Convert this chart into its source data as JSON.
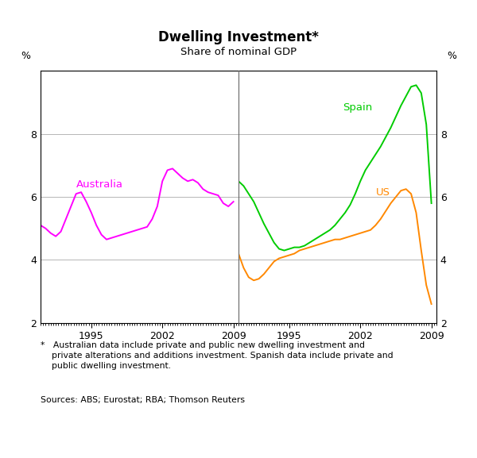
{
  "title": "Dwelling Investment*",
  "subtitle": "Share of nominal GDP",
  "ylabel_left": "%",
  "ylabel_right": "%",
  "footnote_star": "*   Australian data include private and public new dwelling investment and\n    private alterations and additions investment. Spanish data include private and\n    public dwelling investment.",
  "footnote_sources": "Sources: ABS; Eurostat; RBA; Thomson Reuters",
  "ylim": [
    2,
    10
  ],
  "yticks": [
    2,
    4,
    6,
    8
  ],
  "australia_color": "#FF00FF",
  "spain_color": "#00CC00",
  "us_color": "#FF8800",
  "divider_line_color": "#666666",
  "grid_color": "#aaaaaa",
  "xtick_labels_left": [
    "1995",
    "2002",
    "2009"
  ],
  "xtick_labels_right": [
    "1995",
    "2002",
    "2009"
  ],
  "australia_x": [
    1990.0,
    1990.5,
    1991.0,
    1991.5,
    1992.0,
    1992.5,
    1993.0,
    1993.5,
    1994.0,
    1994.5,
    1995.0,
    1995.5,
    1996.0,
    1996.5,
    1997.0,
    1997.5,
    1998.0,
    1998.5,
    1999.0,
    1999.5,
    2000.0,
    2000.5,
    2001.0,
    2001.5,
    2002.0,
    2002.5,
    2003.0,
    2003.5,
    2004.0,
    2004.5,
    2005.0,
    2005.5,
    2006.0,
    2006.5,
    2007.0,
    2007.5,
    2008.0,
    2008.5,
    2009.0
  ],
  "australia_y": [
    5.1,
    5.0,
    4.85,
    4.75,
    4.9,
    5.3,
    5.7,
    6.1,
    6.15,
    5.85,
    5.5,
    5.1,
    4.8,
    4.65,
    4.7,
    4.75,
    4.8,
    4.85,
    4.9,
    4.95,
    5.0,
    5.05,
    5.3,
    5.7,
    6.5,
    6.85,
    6.9,
    6.75,
    6.6,
    6.5,
    6.55,
    6.45,
    6.25,
    6.15,
    6.1,
    6.05,
    5.8,
    5.7,
    5.85
  ],
  "spain_x": [
    1990.0,
    1990.5,
    1991.0,
    1991.5,
    1992.0,
    1992.5,
    1993.0,
    1993.5,
    1994.0,
    1994.5,
    1995.0,
    1995.5,
    1996.0,
    1996.5,
    1997.0,
    1997.5,
    1998.0,
    1998.5,
    1999.0,
    1999.5,
    2000.0,
    2000.5,
    2001.0,
    2001.5,
    2002.0,
    2002.5,
    2003.0,
    2003.5,
    2004.0,
    2004.5,
    2005.0,
    2005.5,
    2006.0,
    2006.5,
    2007.0,
    2007.5,
    2008.0,
    2008.5,
    2009.0
  ],
  "spain_y": [
    6.5,
    6.35,
    6.1,
    5.85,
    5.5,
    5.15,
    4.85,
    4.55,
    4.35,
    4.3,
    4.35,
    4.4,
    4.4,
    4.45,
    4.55,
    4.65,
    4.75,
    4.85,
    4.95,
    5.1,
    5.3,
    5.5,
    5.75,
    6.1,
    6.5,
    6.85,
    7.1,
    7.35,
    7.6,
    7.9,
    8.2,
    8.55,
    8.9,
    9.2,
    9.5,
    9.55,
    9.3,
    8.3,
    5.8
  ],
  "us_x": [
    1990.0,
    1990.5,
    1991.0,
    1991.5,
    1992.0,
    1992.5,
    1993.0,
    1993.5,
    1994.0,
    1994.5,
    1995.0,
    1995.5,
    1996.0,
    1996.5,
    1997.0,
    1997.5,
    1998.0,
    1998.5,
    1999.0,
    1999.5,
    2000.0,
    2000.5,
    2001.0,
    2001.5,
    2002.0,
    2002.5,
    2003.0,
    2003.5,
    2004.0,
    2004.5,
    2005.0,
    2005.5,
    2006.0,
    2006.5,
    2007.0,
    2007.5,
    2008.0,
    2008.5,
    2009.0
  ],
  "us_y": [
    4.2,
    3.75,
    3.45,
    3.35,
    3.4,
    3.55,
    3.75,
    3.95,
    4.05,
    4.1,
    4.15,
    4.2,
    4.3,
    4.35,
    4.4,
    4.45,
    4.5,
    4.55,
    4.6,
    4.65,
    4.65,
    4.7,
    4.75,
    4.8,
    4.85,
    4.9,
    4.95,
    5.1,
    5.3,
    5.55,
    5.8,
    6.0,
    6.2,
    6.25,
    6.1,
    5.5,
    4.3,
    3.2,
    2.6
  ]
}
